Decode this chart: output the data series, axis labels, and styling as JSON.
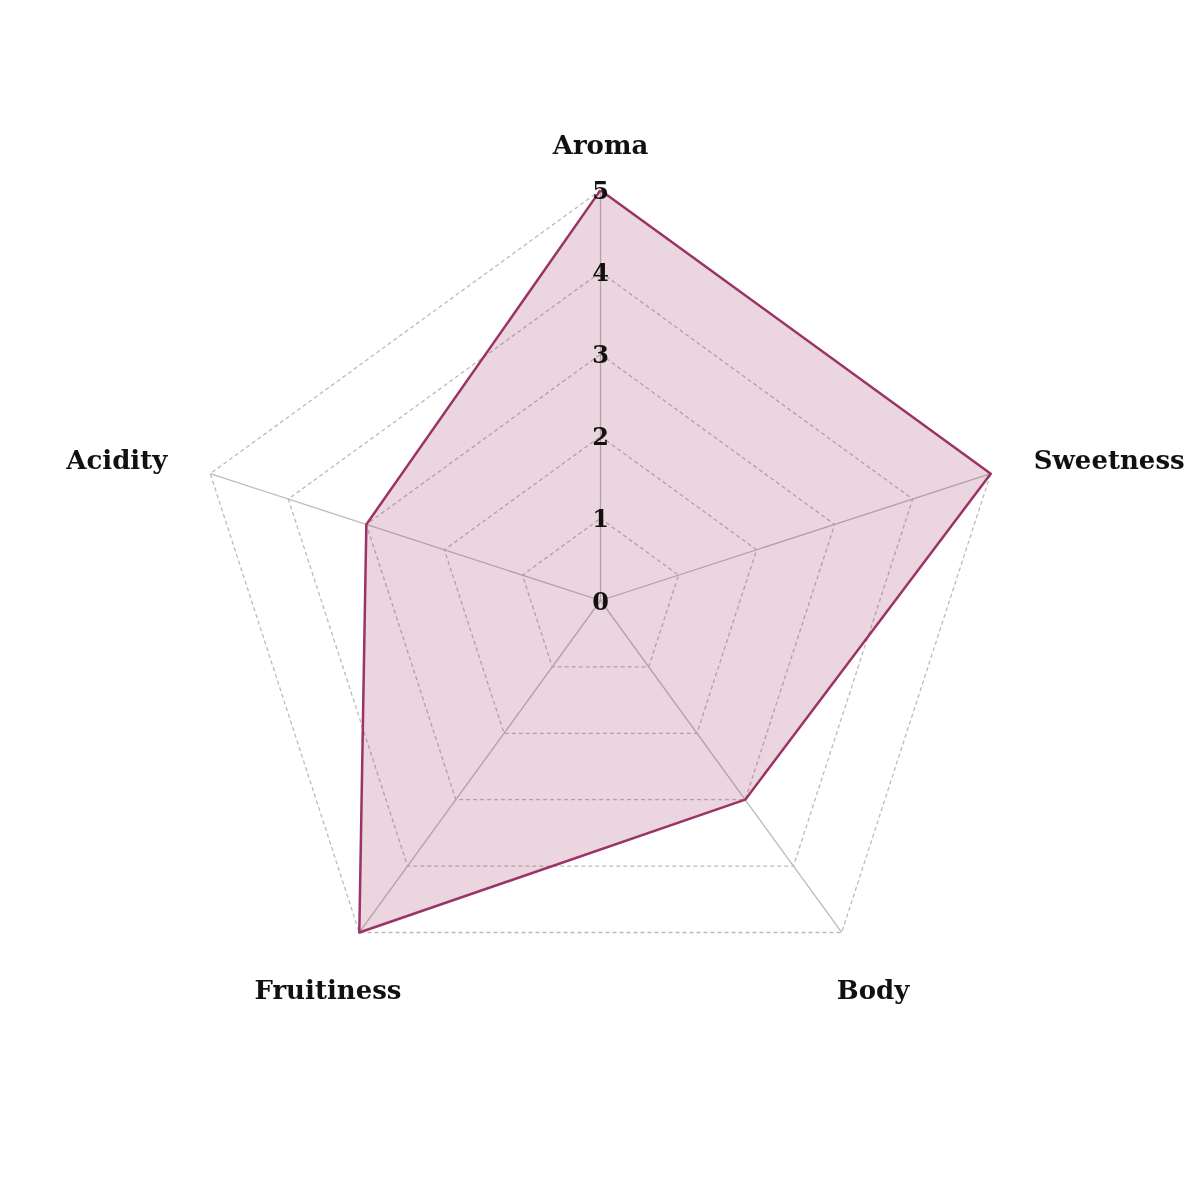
{
  "chart_data": {
    "type": "radar",
    "categories": [
      "Aroma",
      "Sweetness",
      "Body",
      "Fruitiness",
      "Acidity"
    ],
    "series": [
      {
        "color": "#9b3366",
        "values": [
          5,
          5,
          3,
          5,
          3
        ]
      }
    ],
    "ylim": [
      0,
      5
    ],
    "yticks": [
      0,
      1,
      2,
      3,
      4,
      5
    ],
    "grid": true,
    "line_style": "solid"
  }
}
